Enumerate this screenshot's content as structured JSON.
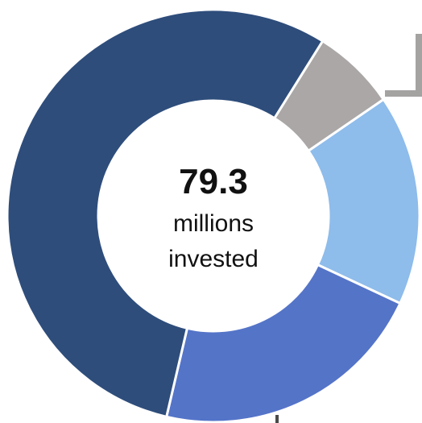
{
  "chart_data": {
    "type": "pie",
    "style": "donut",
    "center_value": "79.3",
    "center_label_line1": "millions",
    "center_label_line2": "invested",
    "slices": [
      {
        "value": 5.2,
        "color": "#aaa7a6"
      },
      {
        "value": 13.1,
        "color": "#8ebceb"
      },
      {
        "value": 17.2,
        "color": "#5474c8"
      },
      {
        "value": 43.8,
        "color": "#2e4d7b"
      }
    ]
  }
}
